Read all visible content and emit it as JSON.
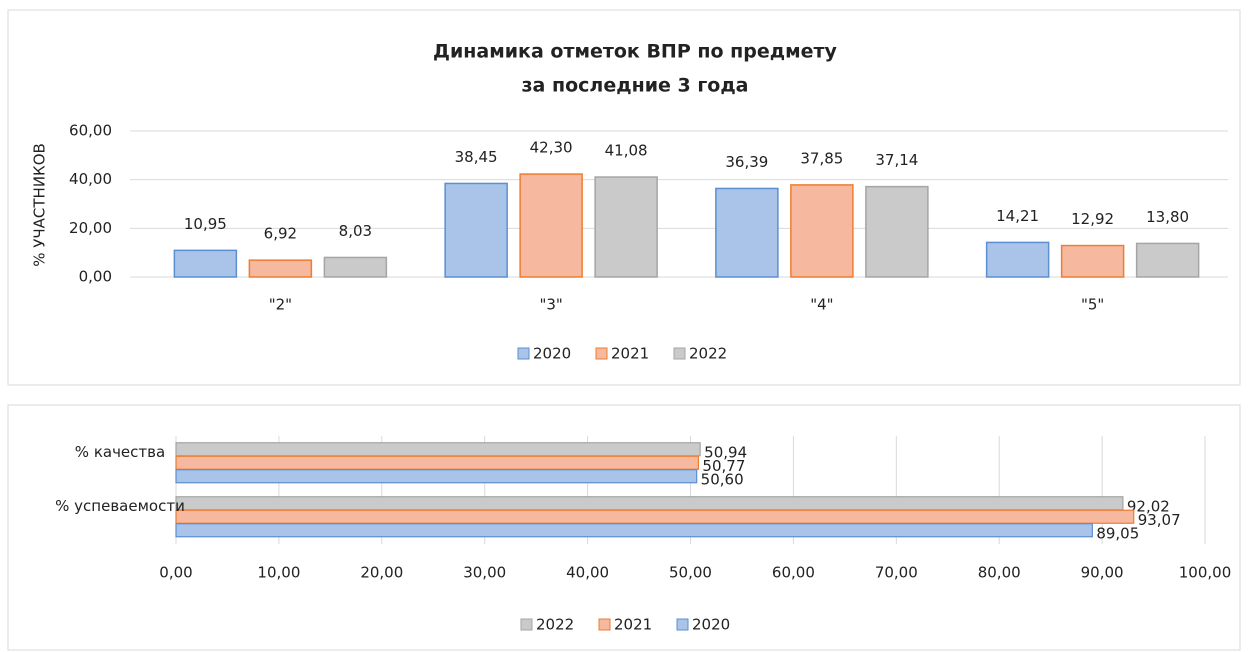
{
  "chart_data": [
    {
      "type": "bar",
      "title": [
        "Динамика отметок ВПР по предмету",
        "за последние 3 года"
      ],
      "ylabel": "% УЧАСТНИКОВ",
      "categories": [
        "\"2\"",
        "\"3\"",
        "\"4\"",
        "\"5\""
      ],
      "series": [
        {
          "name": "2020",
          "color": "#a9c4e8",
          "edgecolor": "#5b8fd1",
          "values": [
            10.95,
            38.45,
            36.39,
            14.21
          ],
          "value_labels": [
            "10,95",
            "38,45",
            "36,39",
            "14,21"
          ]
        },
        {
          "name": "2021",
          "color": "#f6b89e",
          "edgecolor": "#ed7d31",
          "values": [
            6.92,
            42.3,
            37.85,
            12.92
          ],
          "value_labels": [
            "6,92",
            "42,30",
            "37,85",
            "12,92"
          ]
        },
        {
          "name": "2022",
          "color": "#cacaca",
          "edgecolor": "#a5a5a5",
          "values": [
            8.03,
            41.08,
            37.14,
            13.8
          ],
          "value_labels": [
            "8,03",
            "41,08",
            "37,14",
            "13,80"
          ]
        }
      ],
      "ylim": [
        0,
        60
      ],
      "yticks": [
        {
          "value": 0,
          "label": "0,00"
        },
        {
          "value": 20,
          "label": "20,00"
        },
        {
          "value": 40,
          "label": "40,00"
        },
        {
          "value": 60,
          "label": "60,00"
        }
      ],
      "grid": true,
      "legend": "bottom"
    },
    {
      "type": "barh",
      "categories": [
        "% качества",
        "% успеваемости"
      ],
      "series": [
        {
          "name": "2022",
          "color": "#cacaca",
          "edgecolor": "#a5a5a5",
          "values": [
            50.94,
            92.02
          ],
          "value_labels": [
            "50,94",
            "92,02"
          ]
        },
        {
          "name": "2021",
          "color": "#f6b89e",
          "edgecolor": "#ed7d31",
          "values": [
            50.77,
            93.07
          ],
          "value_labels": [
            "50,77",
            "93,07"
          ]
        },
        {
          "name": "2020",
          "color": "#a9c4e8",
          "edgecolor": "#5b8fd1",
          "values": [
            50.6,
            89.05
          ],
          "value_labels": [
            "50,60",
            "89,05"
          ]
        }
      ],
      "xlim": [
        0,
        100
      ],
      "xticks": [
        {
          "value": 0,
          "label": "0,00"
        },
        {
          "value": 10,
          "label": "10,00"
        },
        {
          "value": 20,
          "label": "20,00"
        },
        {
          "value": 30,
          "label": "30,00"
        },
        {
          "value": 40,
          "label": "40,00"
        },
        {
          "value": 50,
          "label": "50,00"
        },
        {
          "value": 60,
          "label": "60,00"
        },
        {
          "value": 70,
          "label": "70,00"
        },
        {
          "value": 80,
          "label": "80,00"
        },
        {
          "value": 90,
          "label": "90,00"
        },
        {
          "value": 100,
          "label": "100,00"
        }
      ],
      "grid": true,
      "legend": "bottom"
    }
  ]
}
